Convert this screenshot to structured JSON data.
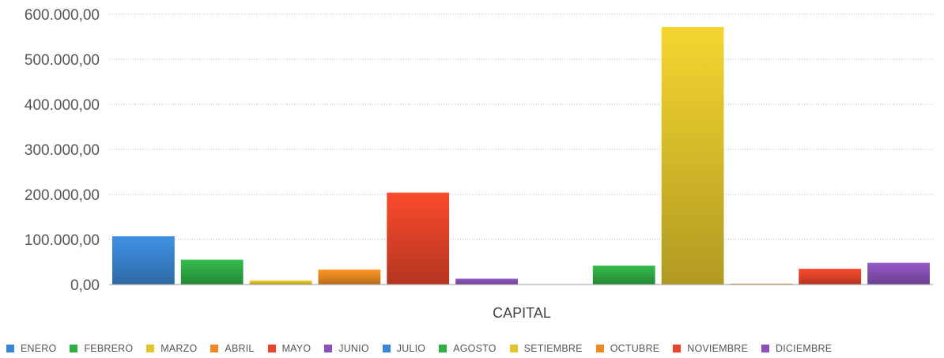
{
  "chart_data": {
    "type": "bar",
    "categories": [
      "CAPITAL"
    ],
    "xlabel": "CAPITAL",
    "ylabel": "",
    "ylim": [
      0,
      600000
    ],
    "yticks": [
      "0,00",
      "100.000,00",
      "200.000,00",
      "300.000,00",
      "400.000,00",
      "500.000,00",
      "600.000,00"
    ],
    "grid": true,
    "legend_position": "bottom",
    "series": [
      {
        "name": "ENERO",
        "values": [
          107000
        ],
        "color": "#3a86d4"
      },
      {
        "name": "FEBRERO",
        "values": [
          55000
        ],
        "color": "#2fae45"
      },
      {
        "name": "MARZO",
        "values": [
          9000
        ],
        "color": "#e3c62c"
      },
      {
        "name": "ABRIL",
        "values": [
          33000
        ],
        "color": "#ef8a22"
      },
      {
        "name": "MAYO",
        "values": [
          204000
        ],
        "color": "#e8452a"
      },
      {
        "name": "JUNIO",
        "values": [
          13000
        ],
        "color": "#8a52b8"
      },
      {
        "name": "JULIO",
        "values": [
          0
        ],
        "color": "#3a86d4"
      },
      {
        "name": "AGOSTO",
        "values": [
          42000
        ],
        "color": "#2fae45"
      },
      {
        "name": "SETIEMBRE",
        "values": [
          572000
        ],
        "color": "#e3c62c"
      },
      {
        "name": "OCTUBRE",
        "values": [
          2000
        ],
        "color": "#ef8a22"
      },
      {
        "name": "NOVIEMBRE",
        "values": [
          35000
        ],
        "color": "#e8452a"
      },
      {
        "name": "DICIEMBRE",
        "values": [
          48000
        ],
        "color": "#8a52b8"
      }
    ]
  }
}
